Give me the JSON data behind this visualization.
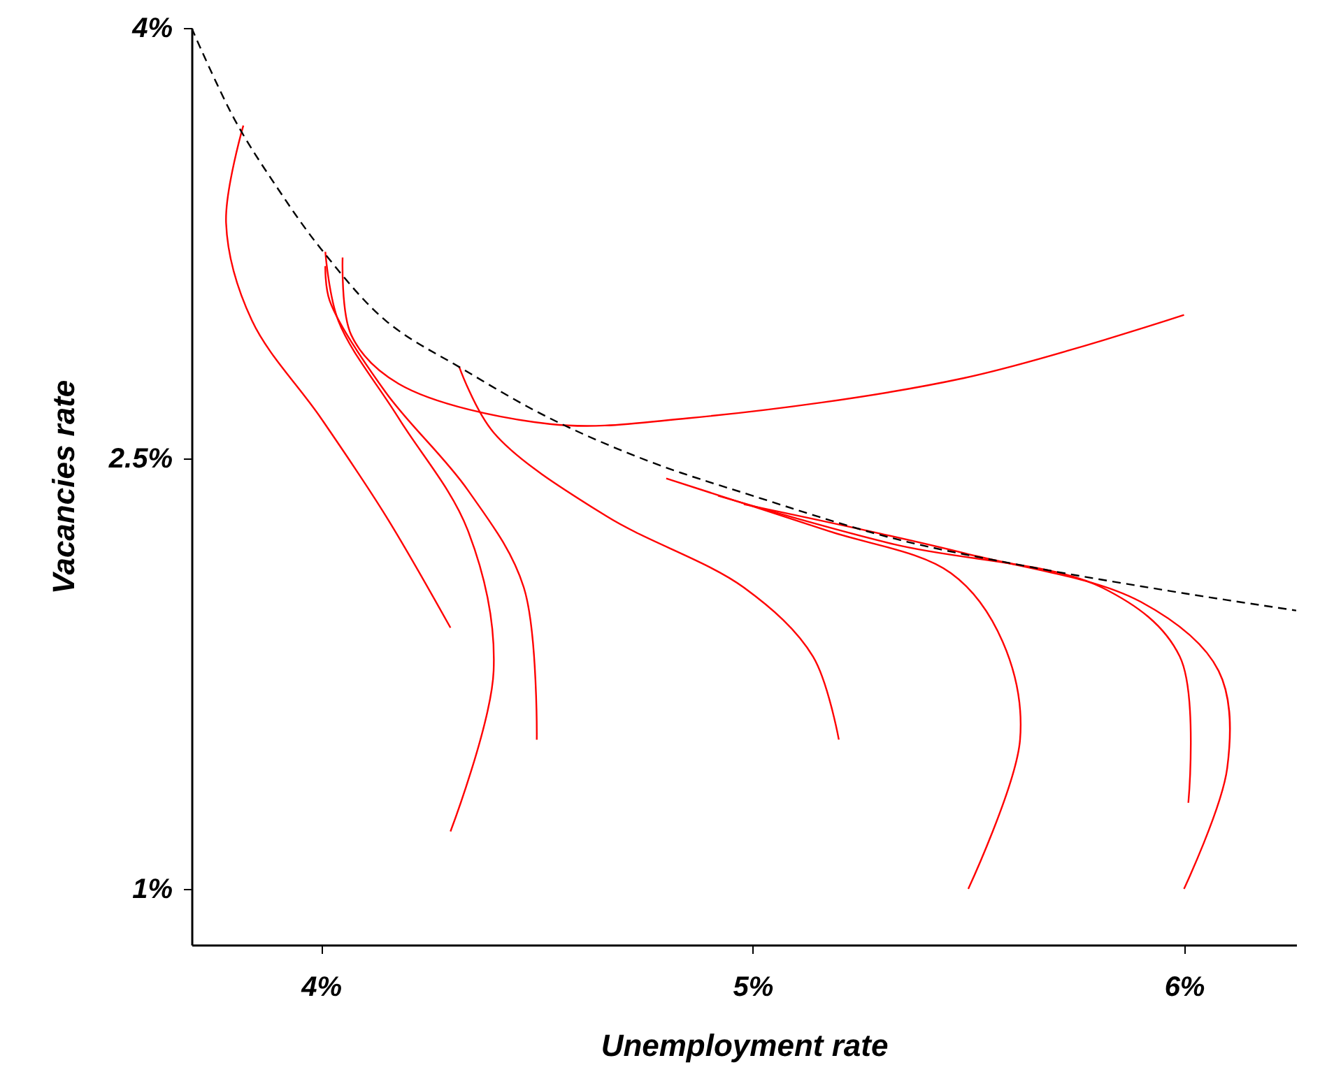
{
  "chart_data": {
    "type": "line",
    "xlabel": "Unemployment rate",
    "ylabel": "Vacancies rate",
    "xlim": [
      3.7,
      6.26
    ],
    "ylim": [
      0.805,
      4.0
    ],
    "xticks": [
      {
        "value": 4,
        "label": "4%"
      },
      {
        "value": 5,
        "label": "5%"
      },
      {
        "value": 6,
        "label": "6%"
      }
    ],
    "yticks": [
      {
        "value": 1,
        "label": "1%"
      },
      {
        "value": 2.5,
        "label": "2.5%"
      },
      {
        "value": 4,
        "label": "4%"
      }
    ],
    "grid": false,
    "series": [
      {
        "color": "#ff0000",
        "line_style": "solid",
        "x": [
          3.82,
          3.78,
          3.84,
          4.0,
          4.15,
          4.3
        ],
        "values": [
          3.66,
          3.32,
          2.98,
          2.64,
          2.3,
          1.91
        ]
      },
      {
        "color": "#ff0000",
        "line_style": "solid",
        "x": [
          4.01,
          4.04,
          4.18,
          4.34,
          4.4,
          4.3
        ],
        "values": [
          3.22,
          2.98,
          2.64,
          2.25,
          1.76,
          1.2
        ]
      },
      {
        "color": "#ff0000",
        "line_style": "solid",
        "x": [
          4.01,
          4.02,
          4.15,
          4.34,
          4.47,
          4.5
        ],
        "values": [
          3.17,
          3.05,
          2.73,
          2.39,
          2.05,
          1.52
        ]
      },
      {
        "color": "#ff0000",
        "line_style": "solid",
        "x": [
          4.05,
          4.07,
          4.18,
          4.53,
          4.85,
          5.49,
          6.0
        ],
        "values": [
          3.2,
          2.93,
          2.76,
          2.62,
          2.64,
          2.78,
          3.0
        ]
      },
      {
        "color": "#ff0000",
        "line_style": "solid",
        "x": [
          4.32,
          4.4,
          4.66,
          4.98,
          5.14,
          5.2
        ],
        "values": [
          2.82,
          2.59,
          2.3,
          2.05,
          1.81,
          1.52
        ]
      },
      {
        "color": "#ff0000",
        "line_style": "solid",
        "x": [
          4.8,
          5.17,
          5.46,
          5.58,
          5.62,
          5.5
        ],
        "values": [
          2.43,
          2.25,
          2.1,
          1.86,
          1.52,
          1.0
        ]
      },
      {
        "color": "#ff0000",
        "line_style": "solid",
        "x": [
          4.92,
          5.33,
          5.81,
          5.99,
          6.01
        ],
        "values": [
          2.37,
          2.2,
          2.05,
          1.81,
          1.3
        ]
      },
      {
        "color": "#ff0000",
        "line_style": "solid",
        "x": [
          4.98,
          5.49,
          5.9,
          6.08,
          6.1,
          6.0
        ],
        "values": [
          2.34,
          2.17,
          2.0,
          1.76,
          1.42,
          1.0
        ]
      },
      {
        "color": "#000000",
        "line_style": "dashed",
        "x": [
          3.7,
          3.8,
          3.9,
          4.0,
          4.15,
          4.33,
          4.53,
          4.76,
          5.0,
          5.33,
          5.65,
          6.0,
          6.26
        ],
        "values": [
          4.0,
          3.68,
          3.44,
          3.23,
          2.98,
          2.81,
          2.64,
          2.49,
          2.37,
          2.22,
          2.12,
          2.03,
          1.97
        ]
      }
    ]
  }
}
